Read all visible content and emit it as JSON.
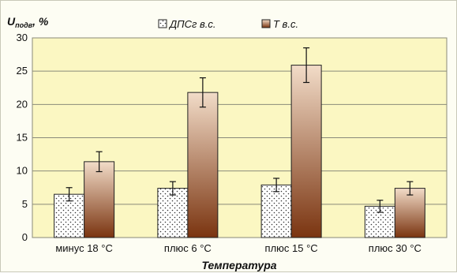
{
  "chart_data": {
    "type": "bar",
    "ylabel": "U",
    "ylabel_subscript": "подв",
    "ylabel_unit": ", %",
    "xlabel": "Температура",
    "categories": [
      "минус 18 °С",
      "плюс 6 °С",
      "плюс 15 °С",
      "плюс 30 °С"
    ],
    "ylim": [
      0,
      30
    ],
    "yticks": [
      0,
      5,
      10,
      15,
      20,
      25,
      30
    ],
    "grid": true,
    "legend_position": "top",
    "series": [
      {
        "name": "ДПСг в.с.",
        "values": [
          6.5,
          7.4,
          7.9,
          4.7
        ],
        "errors": [
          1.0,
          1.0,
          1.0,
          0.9
        ],
        "pattern": "dotted-white",
        "color": "#ffffff"
      },
      {
        "name": "Т в.с.",
        "values": [
          11.4,
          21.8,
          25.9,
          7.4
        ],
        "errors": [
          1.5,
          2.2,
          2.6,
          1.0
        ],
        "pattern": "gradient-brown",
        "color": "#a0522d"
      }
    ],
    "colors": {
      "plot_background": "#fbf7c2",
      "gridline": "#8a8a7a",
      "gradient_top": "#f2dcc8",
      "gradient_bottom": "#7a3410"
    }
  }
}
